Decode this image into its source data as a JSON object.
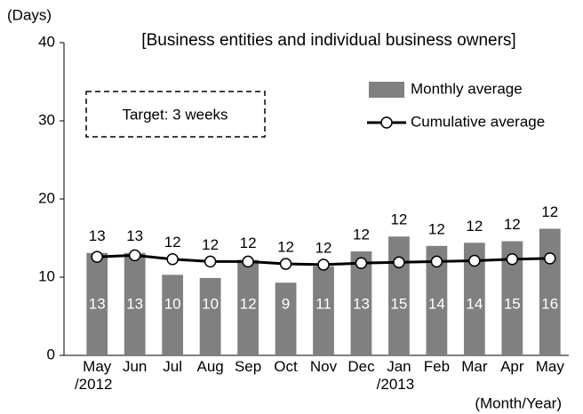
{
  "chart_data": {
    "type": "bar_line",
    "title": "[Business entities and individual business owners]",
    "y_label": "(Days)",
    "x_label": "(Month/Year)",
    "annotation": "Target: 3 weeks",
    "categories": [
      "May\n/2012",
      "Jun",
      "Jul",
      "Aug",
      "Sep",
      "Oct",
      "Nov",
      "Dec",
      "Jan\n/2013",
      "Feb",
      "Mar",
      "Apr",
      "May"
    ],
    "series": [
      {
        "name": "Monthly average",
        "color": "#808080",
        "kind": "bar",
        "values": [
          13.1,
          13.1,
          10.3,
          9.9,
          12.2,
          9.3,
          11.4,
          13.3,
          15.2,
          14.0,
          14.4,
          14.6,
          16.2
        ],
        "value_labels": [
          "13",
          "13",
          "10",
          "10",
          "12",
          "9",
          "11",
          "13",
          "15",
          "14",
          "14",
          "15",
          "16"
        ]
      },
      {
        "name": "Cumulative average",
        "color": "#000000",
        "kind": "line",
        "values": [
          12.6,
          12.8,
          12.3,
          12.0,
          12.0,
          11.7,
          11.6,
          11.8,
          11.9,
          12.0,
          12.1,
          12.3,
          12.4
        ],
        "value_labels": [
          "13",
          "13",
          "12",
          "12",
          "12",
          "12",
          "12",
          "12",
          "12",
          "12",
          "12",
          "12",
          "12"
        ]
      }
    ],
    "ylim": [
      0,
      40
    ],
    "yticks": [
      0,
      10,
      20,
      30,
      40
    ]
  }
}
